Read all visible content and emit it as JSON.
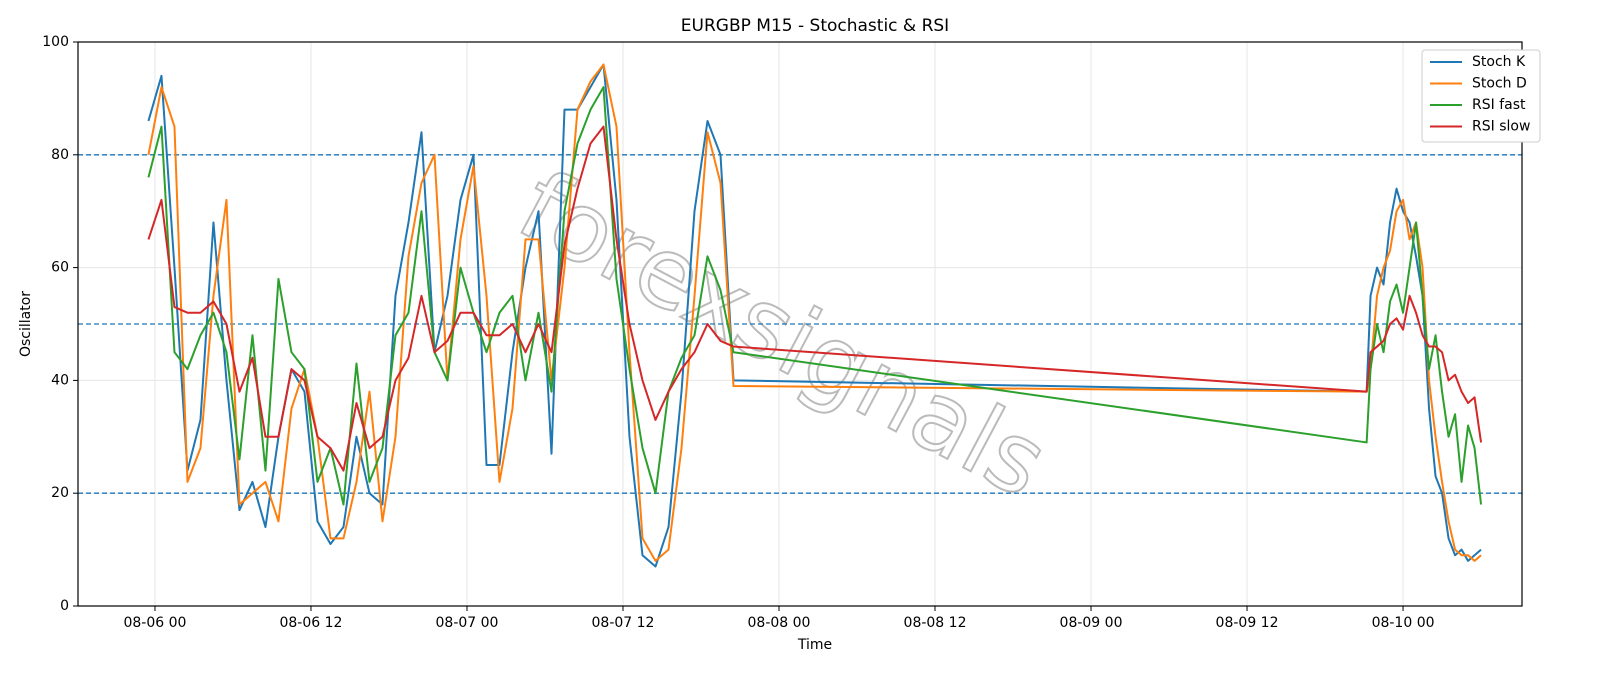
{
  "chart_data": {
    "type": "line",
    "title": "EURGBP M15 - Stochastic & RSI",
    "xlabel": "Time",
    "ylabel": "Oscillator",
    "watermark": "forexsignals",
    "x": [
      -0.5,
      0.5,
      1.5,
      2.5,
      3.5,
      4.5,
      5.5,
      6.5,
      7.5,
      8.5,
      9.5,
      10.5,
      11.5,
      12.5,
      13.5,
      14.5,
      15.5,
      16.5,
      17.5,
      18.5,
      19.5,
      20.5,
      21.5,
      22.5,
      23.5,
      24.5,
      25.5,
      26.5,
      27.5,
      28.5,
      29.5,
      30.5,
      31.5,
      32.5,
      33.5,
      34.5,
      35.5,
      36.5,
      37.5,
      38.5,
      39.5,
      40.5,
      41.5,
      42.5,
      43.5,
      44.5,
      93.2,
      93.5,
      94,
      94.5,
      95,
      95.5,
      96,
      96.5,
      97,
      97.5,
      98,
      98.5,
      99,
      99.5,
      100,
      100.5,
      101,
      101.5,
      102
    ],
    "series": [
      {
        "name": "Stoch K",
        "color": "#1f77b4",
        "values": [
          86,
          94,
          60,
          24,
          33,
          68,
          40,
          17,
          22,
          14,
          30,
          42,
          38,
          15,
          11,
          14,
          30,
          20,
          18,
          55,
          68,
          84,
          45,
          55,
          72,
          80,
          25,
          25,
          45,
          60,
          70,
          27,
          88,
          88,
          92,
          96,
          72,
          30,
          9,
          7,
          14,
          38,
          70,
          86,
          80,
          40,
          38,
          55,
          60,
          57,
          68,
          74,
          70,
          68,
          62,
          55,
          35,
          23,
          20,
          12,
          9,
          10,
          8,
          9,
          10
        ]
      },
      {
        "name": "Stoch D",
        "color": "#ff7f0e",
        "values": [
          80,
          92,
          85,
          22,
          28,
          55,
          72,
          18,
          20,
          22,
          15,
          35,
          42,
          30,
          12,
          12,
          22,
          38,
          15,
          30,
          62,
          75,
          80,
          40,
          65,
          78,
          55,
          22,
          35,
          65,
          65,
          40,
          60,
          88,
          93,
          96,
          85,
          45,
          12,
          8,
          10,
          28,
          55,
          84,
          75,
          39,
          38,
          42,
          55,
          60,
          63,
          70,
          72,
          65,
          68,
          60,
          40,
          30,
          22,
          15,
          10,
          9,
          9,
          8,
          9
        ]
      },
      {
        "name": "RSI fast",
        "color": "#2ca02c",
        "values": [
          76,
          85,
          45,
          42,
          48,
          52,
          45,
          26,
          48,
          24,
          58,
          45,
          42,
          22,
          28,
          18,
          43,
          22,
          28,
          48,
          52,
          70,
          45,
          40,
          60,
          52,
          45,
          52,
          55,
          40,
          52,
          38,
          70,
          82,
          88,
          92,
          58,
          42,
          28,
          20,
          38,
          44,
          48,
          62,
          56,
          45,
          29,
          42,
          50,
          45,
          54,
          57,
          52,
          60,
          68,
          55,
          42,
          48,
          38,
          30,
          34,
          22,
          32,
          28,
          18
        ]
      },
      {
        "name": "RSI slow",
        "color": "#d62728",
        "values": [
          65,
          72,
          53,
          52,
          52,
          54,
          50,
          38,
          44,
          30,
          30,
          42,
          40,
          30,
          28,
          24,
          36,
          28,
          30,
          40,
          44,
          55,
          45,
          47,
          52,
          52,
          48,
          48,
          50,
          45,
          50,
          45,
          64,
          74,
          82,
          85,
          65,
          50,
          40,
          33,
          38,
          42,
          45,
          50,
          47,
          46,
          38,
          45,
          46,
          47,
          50,
          51,
          49,
          55,
          52,
          48,
          46,
          46,
          45,
          40,
          41,
          38,
          36,
          37,
          29
        ]
      }
    ],
    "hlines": [
      20,
      50,
      80
    ],
    "hline_color": "#1f77b4",
    "xlim": [
      -5.92,
      105.15
    ],
    "xticks": [
      {
        "value": 0,
        "label": "08-06 00"
      },
      {
        "value": 12,
        "label": "08-06 12"
      },
      {
        "value": 24,
        "label": "08-07 00"
      },
      {
        "value": 36,
        "label": "08-07 12"
      },
      {
        "value": 48,
        "label": "08-08 00"
      },
      {
        "value": 60,
        "label": "08-08 12"
      },
      {
        "value": 72,
        "label": "08-09 00"
      },
      {
        "value": 84,
        "label": "08-09 12"
      },
      {
        "value": 96,
        "label": "08-10 00"
      }
    ],
    "ylim": [
      0,
      100
    ],
    "yticks": [
      0,
      20,
      40,
      60,
      80,
      100
    ],
    "grid": true,
    "legend": "upper right"
  }
}
